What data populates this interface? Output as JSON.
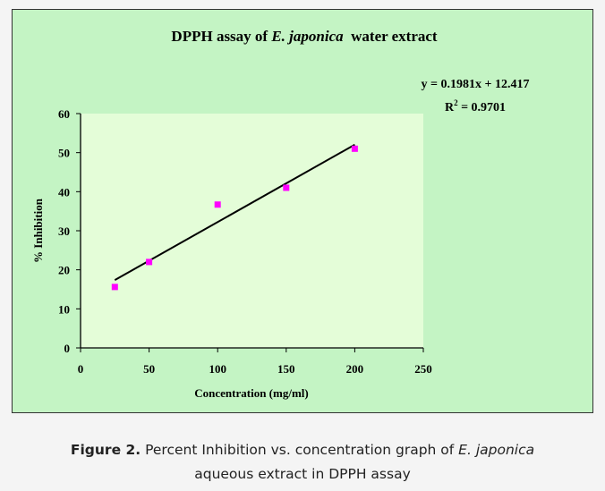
{
  "chart_data": {
    "type": "scatter",
    "title": {
      "prefix": "DPPH assay of ",
      "italic": "E. japonica",
      "suffix": "  water extract"
    },
    "xlabel": "Concentration (mg/ml)",
    "ylabel": "% Inhibition",
    "xlim": [
      0,
      250
    ],
    "ylim": [
      0,
      60
    ],
    "xticks": [
      0,
      50,
      100,
      150,
      200,
      250
    ],
    "yticks": [
      0,
      10,
      20,
      30,
      40,
      50,
      60
    ],
    "grid": false,
    "series": [
      {
        "name": "% Inhibition",
        "x": [
          25,
          50,
          100,
          150,
          200
        ],
        "y": [
          15.6,
          22.0,
          36.7,
          41.0,
          51.0
        ],
        "color": "#ff00ff"
      }
    ],
    "trendline": {
      "slope": 0.1981,
      "intercept": 12.417,
      "x_range": [
        25,
        200
      ],
      "color": "#000000"
    },
    "annotations": {
      "equation": "y = 0.1981x + 12.417",
      "r2_label": "R",
      "r2_sup": "2",
      "r2_value": " = 0.9701"
    },
    "colors": {
      "outer_bg": "#c4f4c4",
      "plot_bg": "#e4fdd8"
    }
  },
  "caption": {
    "label": "Figure 2.",
    "text1": " Percent Inhibition vs. concentration graph of ",
    "italic": "E. japonica",
    "text2": "aqueous extract in DPPH assay"
  }
}
